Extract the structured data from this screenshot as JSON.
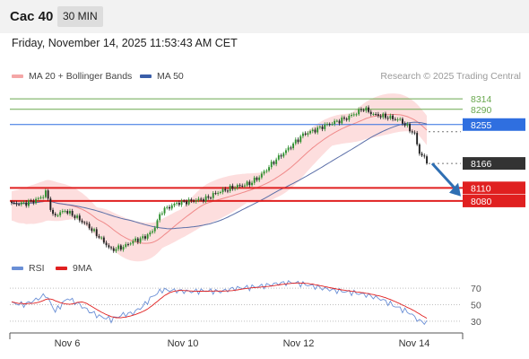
{
  "header": {
    "symbol": "Cac 40",
    "timeframe": "30 MIN"
  },
  "datetime": "Friday, November 14, 2025 11:53:43 AM CET",
  "data_source": "Research © 2025 Trading Central",
  "legend": {
    "main": [
      {
        "label": "MA 20 + Bollinger Bands",
        "color": "#f4a6a6"
      },
      {
        "label": "MA 50",
        "color": "#3a5ea8"
      }
    ],
    "rsi": [
      {
        "label": "RSI",
        "color": "#6a8fd6"
      },
      {
        "label": "9MA",
        "color": "#e02020"
      }
    ]
  },
  "colors": {
    "up": "#2f8f2f",
    "down": "#222222",
    "bollinger_fill": "#fddede",
    "ma20": "#f08a8a",
    "ma50": "#5b6fa8",
    "resistance": "#8cc47a",
    "pivot": "#2f6fe0",
    "support": "#e02020",
    "arrow": "#2f6fb3"
  },
  "chart_data": [
    {
      "type": "candlestick",
      "title": "Cac 40",
      "x_ticks": [
        "Nov 6",
        "Nov 10",
        "Nov 12",
        "Nov 14"
      ],
      "ylim": [
        7975,
        8345
      ],
      "price_levels": [
        {
          "value": 8314,
          "label": "8314",
          "kind": "resistance",
          "color": "#6aa84f"
        },
        {
          "value": 8290,
          "label": "8290",
          "kind": "resistance",
          "color": "#6aa84f"
        },
        {
          "value": 8255,
          "label": "8255",
          "kind": "pivot",
          "color": "#2f6fe0"
        },
        {
          "value": 8166,
          "label": "8166",
          "kind": "last_price",
          "color": "#333333"
        },
        {
          "value": 8110,
          "label": "8110",
          "kind": "support",
          "color": "#e02020"
        },
        {
          "value": 8080,
          "label": "8080",
          "kind": "support",
          "color": "#e02020"
        }
      ],
      "anchors": [
        [
          0,
          8073
        ],
        [
          6,
          8075
        ],
        [
          10,
          8082
        ],
        [
          13,
          8092
        ],
        [
          14,
          8100
        ],
        [
          15,
          8085
        ],
        [
          17,
          8045
        ],
        [
          22,
          8058
        ],
        [
          26,
          8045
        ],
        [
          31,
          8025
        ],
        [
          36,
          7998
        ],
        [
          41,
          7968
        ],
        [
          46,
          7975
        ],
        [
          50,
          7988
        ],
        [
          54,
          7995
        ],
        [
          58,
          8010
        ],
        [
          62,
          8058
        ],
        [
          68,
          8075
        ],
        [
          74,
          8080
        ],
        [
          80,
          8085
        ],
        [
          85,
          8100
        ],
        [
          92,
          8112
        ],
        [
          98,
          8120
        ],
        [
          102,
          8135
        ],
        [
          108,
          8170
        ],
        [
          114,
          8200
        ],
        [
          120,
          8232
        ],
        [
          126,
          8245
        ],
        [
          130,
          8255
        ],
        [
          134,
          8262
        ],
        [
          138,
          8270
        ],
        [
          142,
          8282
        ],
        [
          145,
          8292
        ],
        [
          149,
          8278
        ],
        [
          155,
          8272
        ],
        [
          160,
          8265
        ],
        [
          163,
          8250
        ],
        [
          166,
          8232
        ],
        [
          168,
          8190
        ],
        [
          170,
          8178
        ],
        [
          171,
          8166
        ]
      ],
      "bollinger_width": 48
    },
    {
      "type": "line",
      "title": "RSI",
      "ylim": [
        20,
        80
      ],
      "y_ticks": [
        70,
        50,
        30
      ],
      "rsi_anchors": [
        [
          0,
          52
        ],
        [
          5,
          50
        ],
        [
          10,
          56
        ],
        [
          14,
          62
        ],
        [
          18,
          42
        ],
        [
          23,
          58
        ],
        [
          28,
          50
        ],
        [
          32,
          42
        ],
        [
          36,
          36
        ],
        [
          41,
          32
        ],
        [
          46,
          38
        ],
        [
          50,
          40
        ],
        [
          54,
          48
        ],
        [
          58,
          60
        ],
        [
          62,
          68
        ],
        [
          68,
          67
        ],
        [
          74,
          66
        ],
        [
          80,
          67
        ],
        [
          86,
          66
        ],
        [
          92,
          70
        ],
        [
          98,
          71
        ],
        [
          104,
          73
        ],
        [
          110,
          76
        ],
        [
          116,
          77
        ],
        [
          122,
          74
        ],
        [
          128,
          70
        ],
        [
          134,
          67
        ],
        [
          140,
          65
        ],
        [
          146,
          62
        ],
        [
          152,
          57
        ],
        [
          158,
          48
        ],
        [
          164,
          40
        ],
        [
          168,
          30
        ],
        [
          171,
          28
        ]
      ]
    }
  ]
}
